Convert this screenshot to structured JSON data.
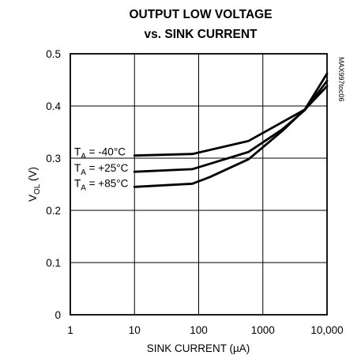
{
  "chart_data": {
    "type": "line",
    "title": "OUTPUT LOW VOLTAGE",
    "subtitle": "vs. SINK CURRENT",
    "xlabel": "SINK CURRENT (µA)",
    "ylabel": {
      "main": "V",
      "sub": "OL",
      "unit": " (V)"
    },
    "x_scale": "log",
    "xlim": [
      1,
      10000
    ],
    "ylim": [
      0,
      0.5
    ],
    "x_ticks": [
      {
        "value": 1,
        "label": "1"
      },
      {
        "value": 10,
        "label": "10"
      },
      {
        "value": 100,
        "label": "100"
      },
      {
        "value": 1000,
        "label": "1000"
      },
      {
        "value": 10000,
        "label": "10,000"
      }
    ],
    "y_ticks": [
      {
        "value": 0,
        "label": "0"
      },
      {
        "value": 0.1,
        "label": "0.1"
      },
      {
        "value": 0.2,
        "label": "0.2"
      },
      {
        "value": 0.3,
        "label": "0.3"
      },
      {
        "value": 0.4,
        "label": "0.4"
      },
      {
        "value": 0.5,
        "label": "0.5"
      }
    ],
    "grid": true,
    "part_code": "MAX997toc06",
    "series": [
      {
        "name": "TA = -40°C",
        "label_parts": {
          "main": "T",
          "sub": "A",
          "rest": " = -40°C"
        },
        "x": [
          10,
          80,
          600,
          4500,
          10000
        ],
        "y": [
          0.305,
          0.308,
          0.333,
          0.393,
          0.438
        ]
      },
      {
        "name": "TA = +25°C",
        "label_parts": {
          "main": "T",
          "sub": "A",
          "rest": " = +25°C"
        },
        "x": [
          10,
          80,
          600,
          2000,
          4500,
          10000
        ],
        "y": [
          0.274,
          0.279,
          0.312,
          0.355,
          0.392,
          0.448
        ]
      },
      {
        "name": "TA = +85°C",
        "label_parts": {
          "main": "T",
          "sub": "A",
          "rest": " = +85°C"
        },
        "x": [
          10,
          80,
          150,
          600,
          2000,
          4500,
          10000
        ],
        "y": [
          0.245,
          0.251,
          0.264,
          0.298,
          0.352,
          0.393,
          0.462
        ]
      }
    ]
  }
}
